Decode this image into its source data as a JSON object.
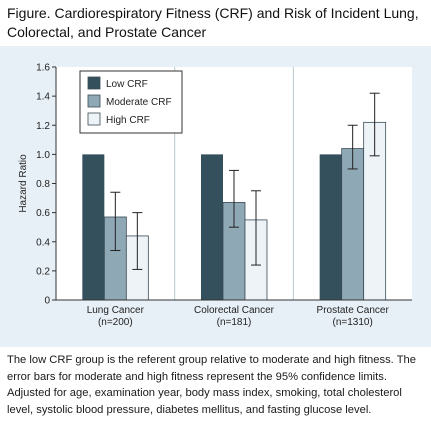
{
  "figure": {
    "title_line1": "Figure. Cardiorespiratory Fitness (CRF) and Risk of Incident Lung,",
    "title_line2": "Colorectal, and Prostate Cancer",
    "caption": "The low CRF group is the referent group relative to moderate and high fitness. The error bars for moderate and high fitness represent the 95% confidence limits. Adjusted for age, examination year, body mass index, smoking, total cholesterol level, systolic blood pressure, diabetes mellitus, and fasting glucose level."
  },
  "chart_data": {
    "type": "bar",
    "title": "Cardiorespiratory Fitness (CRF) and Risk of Incident Lung, Colorectal, and Prostate Cancer",
    "ylabel": "Hazard Ratio",
    "xlabel": "",
    "ylim": [
      0,
      1.6
    ],
    "yticks": [
      0,
      0.2,
      0.4,
      0.6,
      0.8,
      1.0,
      1.2,
      1.4,
      1.6
    ],
    "ytick_labels": [
      "0",
      "0.2",
      "0.4",
      "0.6",
      "0.8",
      "1.0",
      "1.2",
      "1.4",
      "1.6"
    ],
    "categories": [
      {
        "name": "Lung Cancer",
        "n": "(n=200)"
      },
      {
        "name": "Colorectal Cancer",
        "n": "(n=181)"
      },
      {
        "name": "Prostate Cancer",
        "n": "(n=1310)"
      }
    ],
    "series": [
      {
        "name": "Low CRF",
        "color": "#34505d",
        "values": [
          1.0,
          1.0,
          1.0
        ],
        "ci_low": [
          null,
          null,
          null
        ],
        "ci_high": [
          null,
          null,
          null
        ]
      },
      {
        "name": "Moderate CRF",
        "color": "#8fa8b6",
        "values": [
          0.57,
          0.67,
          1.04
        ],
        "ci_low": [
          0.34,
          0.5,
          0.9
        ],
        "ci_high": [
          0.74,
          0.89,
          1.2
        ]
      },
      {
        "name": "High CRF",
        "color": "#eef3f7",
        "values": [
          0.44,
          0.55,
          1.22
        ],
        "ci_low": [
          0.21,
          0.24,
          0.99
        ],
        "ci_high": [
          0.6,
          0.75,
          1.42
        ]
      }
    ],
    "legend_position": "top-left",
    "grid": false
  }
}
